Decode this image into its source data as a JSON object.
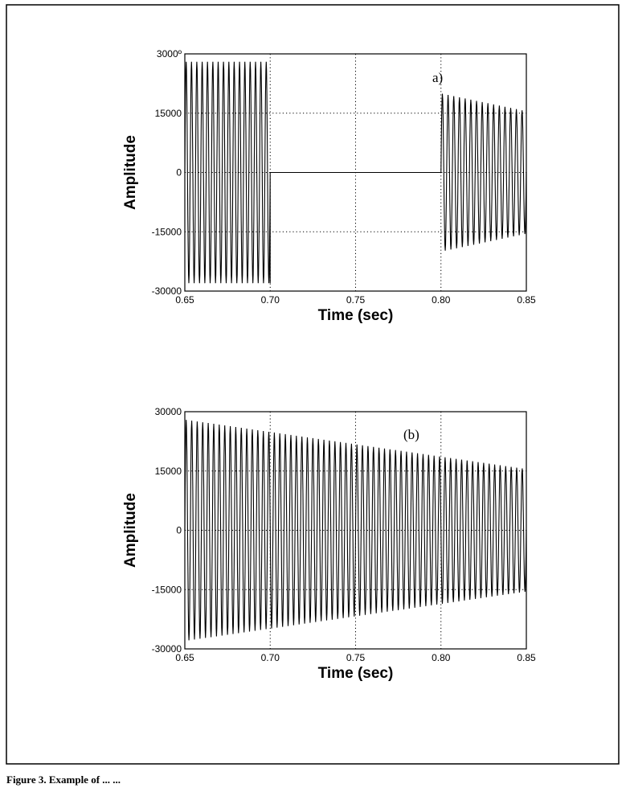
{
  "chart_data": [
    {
      "type": "line",
      "annotation": "a)",
      "xlabel": "Time (sec)",
      "ylabel": "Amplitude",
      "xlim": [
        0.65,
        0.85
      ],
      "ylim": [
        -30000,
        30000
      ],
      "xticks": [
        "0.65",
        "0.70",
        "0.75",
        "0.80",
        "0.85"
      ],
      "yticks": [
        "3000º",
        "15000",
        "0",
        "-15000",
        "-30000"
      ],
      "grid": true,
      "series": [
        {
          "segments": [
            {
              "x_start": 0.65,
              "x_end": 0.7,
              "amplitude_start": 28000,
              "amplitude_end": 28000,
              "cycles": 16
            },
            {
              "x_start": 0.7,
              "x_end": 0.8,
              "amplitude_start": 0,
              "amplitude_end": 0,
              "cycles": 0
            },
            {
              "x_start": 0.8,
              "x_end": 0.85,
              "amplitude_start": 20000,
              "amplitude_end": 15500,
              "cycles": 15
            }
          ]
        }
      ]
    },
    {
      "type": "line",
      "annotation": "(b)",
      "xlabel": "Time (sec)",
      "ylabel": "Amplitude",
      "xlim": [
        0.65,
        0.85
      ],
      "ylim": [
        -30000,
        30000
      ],
      "xticks": [
        "0.65",
        "0.70",
        "0.75",
        "0.80",
        "0.85"
      ],
      "yticks": [
        "30000",
        "15000",
        "0",
        "-15000",
        "-30000"
      ],
      "grid": true,
      "series": [
        {
          "segments": [
            {
              "x_start": 0.65,
              "x_end": 0.85,
              "amplitude_start": 28000,
              "amplitude_end": 15500,
              "cycles": 62
            }
          ]
        }
      ]
    }
  ],
  "caption": "Figure 3.    Example of ...  ..."
}
